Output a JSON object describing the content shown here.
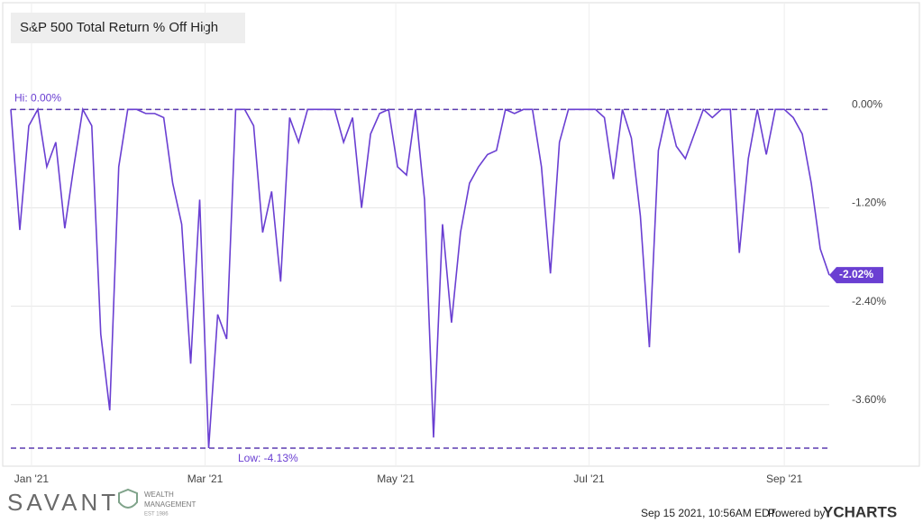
{
  "chart_data": {
    "type": "line",
    "title": "S&P 500 Total Return % Off High",
    "color": "#6a3fd2",
    "values": [
      0,
      -1.47,
      -0.2,
      0,
      -0.7,
      -0.4,
      -1.45,
      -0.7,
      0,
      -0.2,
      -2.74,
      -3.67,
      -0.7,
      0,
      0,
      -0.05,
      -0.05,
      -0.1,
      -0.9,
      -1.4,
      -3.1,
      -1.1,
      -4.13,
      -2.5,
      -2.8,
      0,
      0,
      -0.2,
      -1.5,
      -1.0,
      -2.1,
      -0.1,
      -0.4,
      0,
      0,
      0,
      0,
      -0.4,
      -0.1,
      -1.2,
      -0.3,
      -0.05,
      0,
      -0.7,
      -0.8,
      0,
      -1.1,
      -4.0,
      -1.4,
      -2.6,
      -1.5,
      -0.9,
      -0.7,
      -0.55,
      -0.5,
      0,
      -0.05,
      0,
      0,
      -0.7,
      -2.0,
      -0.4,
      0,
      0,
      0,
      0,
      -0.1,
      -0.85,
      0,
      -0.35,
      -1.3,
      -2.9,
      -0.5,
      0,
      -0.45,
      -0.6,
      -0.3,
      0,
      -0.1,
      0,
      0,
      -1.75,
      -0.6,
      0,
      -0.55,
      0,
      0,
      -0.1,
      -0.3,
      -0.9,
      -1.7,
      -2.02
    ],
    "end_label": "-2.02%",
    "xlim": [
      0,
      91
    ],
    "xticks": [
      {
        "value": 2.3,
        "label": "Jan '21"
      },
      {
        "value": 21.6,
        "label": "Mar '21"
      },
      {
        "value": 42.8,
        "label": "May '21"
      },
      {
        "value": 64.3,
        "label": "Jul '21"
      },
      {
        "value": 86,
        "label": "Sep '21"
      }
    ],
    "ylim": [
      -4.35,
      1.29
    ],
    "yticks": [
      {
        "value": 0,
        "label": "0.00%"
      },
      {
        "value": -1.2,
        "label": "-1.20%"
      },
      {
        "value": -2.4,
        "label": "-2.40%"
      },
      {
        "value": -3.6,
        "label": "-3.60%"
      }
    ],
    "annotations": [
      {
        "value": 0,
        "label": "Hi: 0.00%"
      },
      {
        "value": -4.13,
        "label": "Low: -4.13%"
      }
    ],
    "grid": true
  },
  "footer": {
    "brand": "SAVANT",
    "brand_sub": [
      "WEALTH",
      "MANAGEMENT",
      "EST 1986"
    ],
    "timestamp": "Sep 15 2021, 10:56AM EDT.",
    "powered_by": "Powered by",
    "provider": "YCHARTS"
  }
}
